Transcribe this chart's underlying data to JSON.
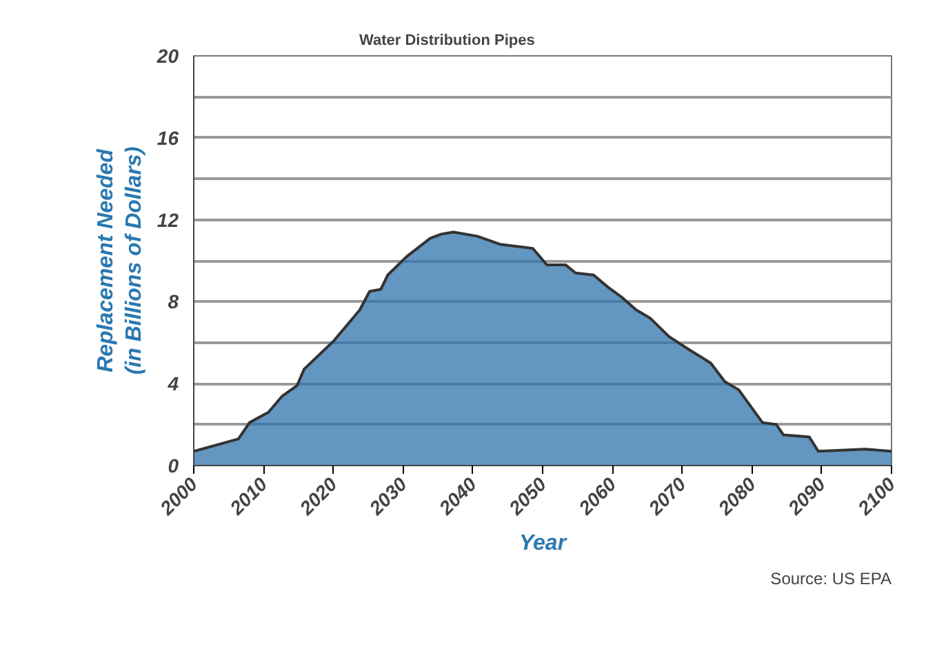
{
  "chart_data": {
    "type": "area",
    "title": "Water Distribution Pipes",
    "xlabel": "Year",
    "ylabel": "Replacement Needed\n(in Billions of Dollars)",
    "x": [
      2000,
      2006.4,
      2008,
      2010.7,
      2012.7,
      2014.8,
      2015.8,
      2020.1,
      2023.8,
      2025.2,
      2026.8,
      2027.8,
      2030.5,
      2033.9,
      2035.5,
      2037.2,
      2040.6,
      2043.9,
      2048.6,
      2050.6,
      2053.3,
      2054.7,
      2057.3,
      2059.4,
      2061.4,
      2063.4,
      2065.4,
      2068.1,
      2070.8,
      2074.1,
      2076.1,
      2078.1,
      2081.5,
      2083.5,
      2084.5,
      2088.2,
      2089.5,
      2096.2,
      2100
    ],
    "series": [
      {
        "color": "#2f73ab",
        "values": [
          0.7,
          1.3,
          2.1,
          2.6,
          3.4,
          3.9,
          4.7,
          6.1,
          7.6,
          8.5,
          8.6,
          9.3,
          10.2,
          11.1,
          11.3,
          11.4,
          11.2,
          10.8,
          10.6,
          9.8,
          9.8,
          9.4,
          9.3,
          8.7,
          8.2,
          7.6,
          7.2,
          6.3,
          5.7,
          5.0,
          4.1,
          3.7,
          2.1,
          2.0,
          1.5,
          1.4,
          0.7,
          0.8,
          0.7
        ]
      }
    ],
    "xlim": [
      2000,
      2100
    ],
    "xticks": [
      2000,
      2010,
      2020,
      2030,
      2040,
      2050,
      2060,
      2070,
      2080,
      2090,
      2100
    ],
    "ylim": [
      0,
      20
    ],
    "yticks": [
      0,
      {
        "value": 2,
        "label": null
      },
      4,
      {
        "value": 6,
        "label": null
      },
      8,
      {
        "value": 10,
        "label": null
      },
      12,
      {
        "value": 14,
        "label": null
      },
      16,
      {
        "value": 18,
        "label": null
      },
      20
    ],
    "grid": "y",
    "annotations": [
      "Source: US EPA"
    ]
  }
}
